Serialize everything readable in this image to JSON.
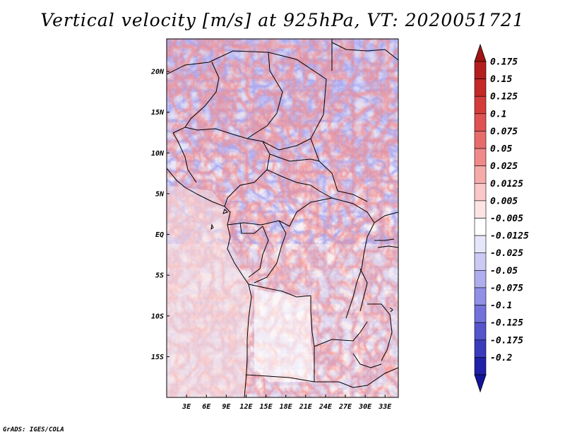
{
  "title": "Vertical velocity [m/s] at 925hPa, VT: 2020051721",
  "footer": "GrADS: IGES/COLA",
  "map": {
    "lon_range": [
      0,
      35
    ],
    "lat_range": [
      -20,
      24
    ],
    "lat_ticks": [
      {
        "value": 20,
        "label": "20N"
      },
      {
        "value": 15,
        "label": "15N"
      },
      {
        "value": 10,
        "label": "10N"
      },
      {
        "value": 5,
        "label": "5N"
      },
      {
        "value": 0,
        "label": "EQ"
      },
      {
        "value": -5,
        "label": "5S"
      },
      {
        "value": -10,
        "label": "10S"
      },
      {
        "value": -15,
        "label": "15S"
      }
    ],
    "lon_ticks": [
      {
        "value": 3,
        "label": "3E"
      },
      {
        "value": 6,
        "label": "6E"
      },
      {
        "value": 9,
        "label": "9E"
      },
      {
        "value": 12,
        "label": "12E"
      },
      {
        "value": 15,
        "label": "15E"
      },
      {
        "value": 18,
        "label": "18E"
      },
      {
        "value": 21,
        "label": "21E"
      },
      {
        "value": 24,
        "label": "24E"
      },
      {
        "value": 27,
        "label": "27E"
      },
      {
        "value": 30,
        "label": "30E"
      },
      {
        "value": 33,
        "label": "33E"
      }
    ]
  },
  "colorbar": {
    "units": "m/s",
    "levels": [
      {
        "label": "0.175",
        "color": "#b41e1e"
      },
      {
        "label": "0.15",
        "color": "#c42828"
      },
      {
        "label": "0.125",
        "color": "#d43c3c"
      },
      {
        "label": "0.1",
        "color": "#e05252"
      },
      {
        "label": "0.075",
        "color": "#e86c6c"
      },
      {
        "label": "0.05",
        "color": "#f08a8a"
      },
      {
        "label": "0.025",
        "color": "#f6aaaa"
      },
      {
        "label": "0.0125",
        "color": "#fac8c8"
      },
      {
        "label": "0.005",
        "color": "#fde4e4"
      },
      {
        "label": "-0.005",
        "color": "#ffffff"
      },
      {
        "label": "-0.0125",
        "color": "#e6e6fa"
      },
      {
        "label": "-0.025",
        "color": "#cacaf4"
      },
      {
        "label": "-0.05",
        "color": "#aeaeee"
      },
      {
        "label": "-0.075",
        "color": "#9090e6"
      },
      {
        "label": "-0.1",
        "color": "#7272dc"
      },
      {
        "label": "-0.125",
        "color": "#5454cc"
      },
      {
        "label": "-0.175",
        "color": "#3a3abc"
      },
      {
        "label": "-0.2",
        "color": "#2020a8"
      }
    ],
    "end_colors": {
      "top": "#a01414",
      "bottom": "#14149a"
    }
  }
}
